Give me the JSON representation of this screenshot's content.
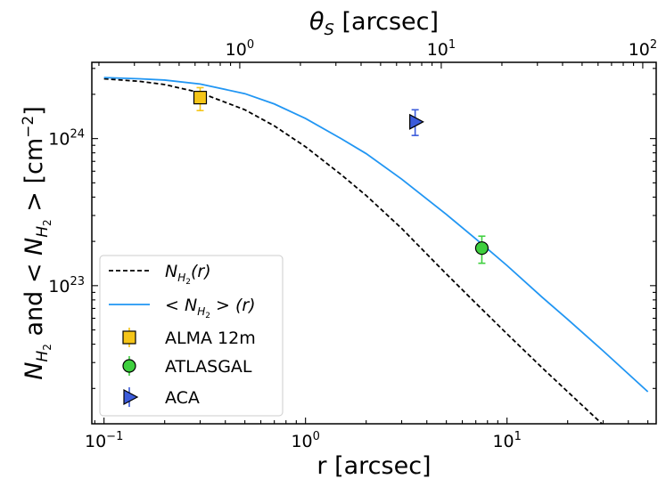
{
  "chart_data": {
    "type": "line",
    "scale": {
      "x": "log",
      "y": "log"
    },
    "xlabel": "r [arcsec]",
    "ylabel": "N_H2 and <N_H2> [cm^-2]",
    "top_xlabel": "θ_S [arcsec]",
    "xlim": [
      0.087,
      55
    ],
    "ylim": [
      1.15e+22,
      3.3e+24
    ],
    "top_axis_scale": 2.12,
    "bottom_ticks": [
      {
        "value": 0.1,
        "base": "10",
        "exp": "−1"
      },
      {
        "value": 1,
        "base": "10",
        "exp": "0"
      },
      {
        "value": 10,
        "base": "10",
        "exp": "1"
      }
    ],
    "top_ticks": [
      {
        "value": 1,
        "base": "10",
        "exp": "0"
      },
      {
        "value": 10,
        "base": "10",
        "exp": "1"
      },
      {
        "value": 100,
        "base": "10",
        "exp": "2"
      }
    ],
    "y_ticks": [
      {
        "value": 1e+23,
        "base": "10",
        "exp": "23"
      },
      {
        "value": 1e+24,
        "base": "10",
        "exp": "24"
      }
    ],
    "series": [
      {
        "name": "N_H2(r)",
        "label_main": "N",
        "label_sub": "H",
        "label_subsub": "2",
        "label_suffix": "(r)",
        "style": "dashed",
        "color": "#000000",
        "x": [
          0.1,
          0.15,
          0.2,
          0.3,
          0.5,
          0.7,
          1,
          1.5,
          2,
          3,
          5,
          7,
          10,
          15,
          20,
          30,
          50
        ],
        "y": [
          2.55e+24,
          2.45e+24,
          2.33e+24,
          2.05e+24,
          1.57e+24,
          1.22e+24,
          8.8e+23,
          5.7e+23,
          4.1e+23,
          2.45e+23,
          1.2e+23,
          7.6e+22,
          4.7e+22,
          2.75e+22,
          1.9e+22,
          1.13e+22,
          6.1e+21
        ]
      },
      {
        "name": "<N_H2>(r)",
        "label_main": "< N",
        "label_sub": "H",
        "label_subsub": "2",
        "label_suffix": " > (r)",
        "style": "solid",
        "color": "#2196f3",
        "x": [
          0.1,
          0.15,
          0.2,
          0.3,
          0.5,
          0.7,
          1,
          1.5,
          2,
          3,
          5,
          7,
          10,
          15,
          20,
          30,
          50
        ],
        "y": [
          2.6e+24,
          2.55e+24,
          2.5e+24,
          2.35e+24,
          2.02e+24,
          1.72e+24,
          1.37e+24,
          1e+24,
          7.9e+23,
          5.3e+23,
          3.05e+23,
          2.08e+23,
          1.37e+23,
          8.3e+22,
          5.9e+22,
          3.6e+22,
          1.9e+22
        ]
      }
    ],
    "points": [
      {
        "name": "ALMA 12m",
        "marker": "square",
        "color": "#f5c518",
        "errcolor": "#f5c518",
        "x": 0.3,
        "y": 1.9e+24,
        "ylo": 1.55e+24,
        "yhi": 2.22e+24
      },
      {
        "name": "ATLASGAL",
        "marker": "circle",
        "color": "#3ecf3e",
        "errcolor": "#3ecf3e",
        "x": 7.5,
        "y": 1.8e+23,
        "ylo": 1.42e+23,
        "yhi": 2.17e+23
      },
      {
        "name": "ACA",
        "marker": "triangle-right",
        "color": "#3b5bdb",
        "errcolor": "#3b5bdb",
        "x": 3.5,
        "y": 1.3e+24,
        "ylo": 1.05e+24,
        "yhi": 1.57e+24
      }
    ],
    "legend": {
      "position": "lower-left"
    }
  }
}
